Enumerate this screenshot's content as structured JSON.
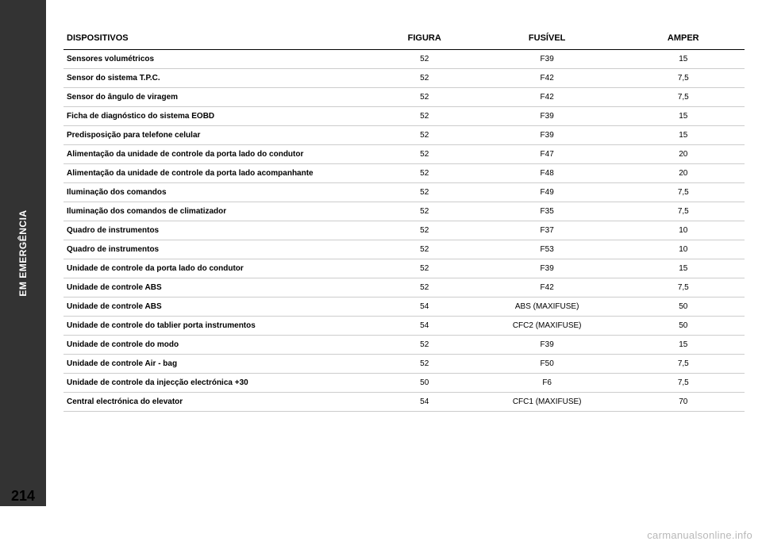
{
  "sidebar": {
    "label": "EM EMERGÊNCIA"
  },
  "page_number": "214",
  "watermark": "carmanualsonline.info",
  "table": {
    "headers": {
      "device": "DISPOSITIVOS",
      "figure": "FIGURA",
      "fuse": "FUSÍVEL",
      "amp": "AMPER"
    },
    "rows": [
      {
        "device": "Sensores volumétricos",
        "figure": "52",
        "fuse": "F39",
        "amp": "15"
      },
      {
        "device": "Sensor do sistema T.P.C.",
        "figure": "52",
        "fuse": "F42",
        "amp": "7,5"
      },
      {
        "device": "Sensor do ângulo de viragem",
        "figure": "52",
        "fuse": "F42",
        "amp": "7,5"
      },
      {
        "device": "Ficha de diagnóstico do sistema EOBD",
        "figure": "52",
        "fuse": "F39",
        "amp": "15"
      },
      {
        "device": "Predisposição para telefone celular",
        "figure": "52",
        "fuse": "F39",
        "amp": "15"
      },
      {
        "device": "Alimentação da unidade de controle da porta lado do condutor",
        "figure": "52",
        "fuse": "F47",
        "amp": "20"
      },
      {
        "device": "Alimentação da unidade de controle da porta lado acompanhante",
        "figure": "52",
        "fuse": "F48",
        "amp": "20"
      },
      {
        "device": "Iluminação dos comandos",
        "figure": "52",
        "fuse": "F49",
        "amp": "7,5"
      },
      {
        "device": "Iluminação dos comandos de climatizador",
        "figure": "52",
        "fuse": "F35",
        "amp": "7,5"
      },
      {
        "device": "Quadro de instrumentos",
        "figure": "52",
        "fuse": "F37",
        "amp": "10"
      },
      {
        "device": "Quadro de instrumentos",
        "figure": "52",
        "fuse": "F53",
        "amp": "10"
      },
      {
        "device": "Unidade de controle da porta lado do condutor",
        "figure": "52",
        "fuse": "F39",
        "amp": "15"
      },
      {
        "device": "Unidade de controle ABS",
        "figure": "52",
        "fuse": "F42",
        "amp": "7,5"
      },
      {
        "device": "Unidade de controle ABS",
        "figure": "54",
        "fuse": "ABS (MAXIFUSE)",
        "amp": "50"
      },
      {
        "device": "Unidade de controle do tablier porta instrumentos",
        "figure": "54",
        "fuse": "CFC2 (MAXIFUSE)",
        "amp": "50"
      },
      {
        "device": "Unidade de controle do modo",
        "figure": "52",
        "fuse": "F39",
        "amp": "15"
      },
      {
        "device": "Unidade de controle Air - bag",
        "figure": "52",
        "fuse": "F50",
        "amp": "7,5"
      },
      {
        "device": "Unidade de controle da injecção electrónica +30",
        "figure": "50",
        "fuse": "F6",
        "amp": "7,5"
      },
      {
        "device": "Central electrónica do elevator",
        "figure": "54",
        "fuse": "CFC1 (MAXIFUSE)",
        "amp": "70"
      }
    ]
  }
}
